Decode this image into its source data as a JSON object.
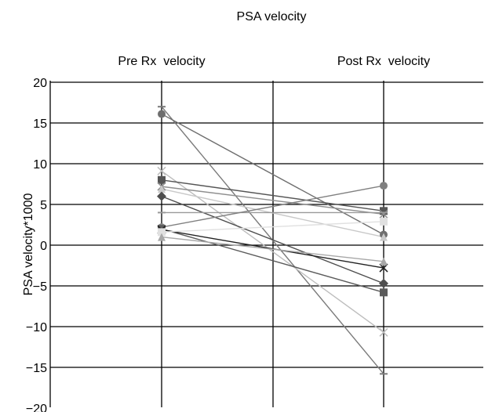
{
  "chart_data": {
    "type": "line",
    "title": "PSA velocity",
    "ylabel": "PSA velocity*1000",
    "categories": [
      "Pre Rx  velocity",
      "Post Rx  velocity"
    ],
    "ylim": [
      -20,
      20
    ],
    "yticks": [
      "20",
      "15",
      "10",
      "5",
      "0",
      "−5",
      "−10",
      "−15",
      "−20"
    ],
    "ytick_values": [
      20,
      15,
      10,
      5,
      0,
      -5,
      -10,
      -15,
      -20
    ],
    "grid": true,
    "series": [
      {
        "values": [
          17.0,
          -15.8
        ],
        "color": "#7a7a7a",
        "marker": "dash"
      },
      {
        "values": [
          16.1,
          1.3
        ],
        "color": "#6e6e6e",
        "marker": "circle"
      },
      {
        "values": [
          9.1,
          -10.7
        ],
        "color": "#bdbdbd",
        "marker": "x"
      },
      {
        "values": [
          8.0,
          4.2
        ],
        "color": "#555555",
        "marker": "square"
      },
      {
        "values": [
          7.2,
          3.8
        ],
        "color": "#8e8e8e",
        "marker": "x"
      },
      {
        "values": [
          6.9,
          1.0
        ],
        "color": "#c9c9c9",
        "marker": "triangle"
      },
      {
        "values": [
          6.0,
          -4.7
        ],
        "color": "#4e4e4e",
        "marker": "diamond"
      },
      {
        "values": [
          4.0,
          4.0
        ],
        "color": "#999999",
        "marker": "dash"
      },
      {
        "values": [
          2.2,
          7.3
        ],
        "color": "#808080",
        "marker": "circle"
      },
      {
        "values": [
          2.0,
          -5.8
        ],
        "color": "#5b5b5b",
        "marker": "square"
      },
      {
        "values": [
          1.9,
          -2.8
        ],
        "color": "#222222",
        "marker": "x"
      },
      {
        "values": [
          1.6,
          2.9
        ],
        "color": "#e0e0e0",
        "marker": "square"
      },
      {
        "values": [
          1.0,
          -2.0
        ],
        "color": "#a8a8a8",
        "marker": "triangle"
      }
    ]
  }
}
